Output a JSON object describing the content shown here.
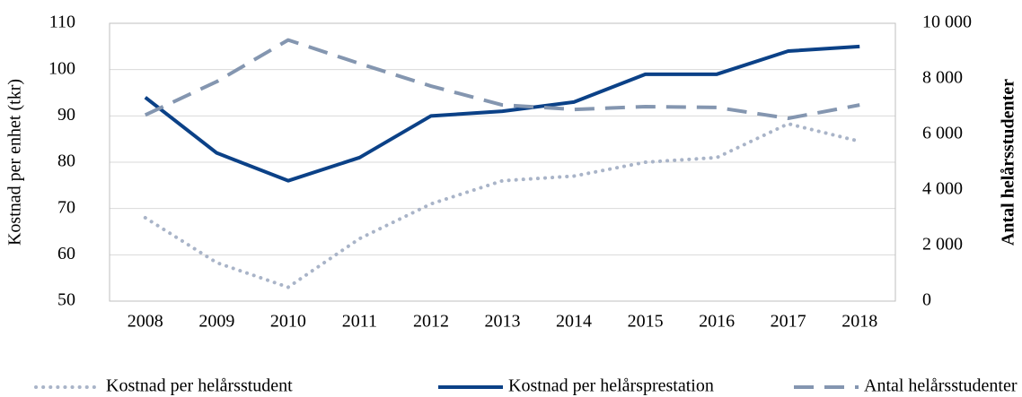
{
  "chart_data": {
    "type": "line",
    "categories": [
      "2008",
      "2009",
      "2010",
      "2011",
      "2012",
      "2013",
      "2014",
      "2015",
      "2016",
      "2017",
      "2018"
    ],
    "ylabel": "Kostnad per enhet (tkr)",
    "y2label": "Antal helårsstudenter",
    "ylim": [
      50,
      110
    ],
    "yticks": [
      50,
      60,
      70,
      80,
      90,
      100,
      110
    ],
    "y2lim": [
      0,
      10000
    ],
    "y2ticks": [
      0,
      {
        "value": 2000,
        "label": "2 000"
      },
      {
        "value": 4000,
        "label": "4 000"
      },
      {
        "value": 6000,
        "label": "6 000"
      },
      {
        "value": 8000,
        "label": "8 000"
      },
      {
        "value": 10000,
        "label": "10 000"
      }
    ],
    "grid": true,
    "legend": "bottom",
    "series": [
      {
        "name": "Kostnad per helårsstudent",
        "color": "#a9b4c8",
        "style": "dotted",
        "values": [
          68,
          58.3,
          53,
          63.5,
          71,
          76,
          77,
          80,
          81,
          88.3,
          84.5
        ]
      },
      {
        "name": "Kostnad per helårsprestation",
        "color": "#0b4187",
        "style": "solid",
        "values": [
          94,
          82,
          76,
          81,
          90,
          91,
          93,
          99,
          99,
          104,
          105
        ]
      },
      {
        "name": "Antal helårsstudenter",
        "color": "#8496b0",
        "style": "dashed",
        "axis": "y2",
        "values": [
          6700,
          7900,
          9400,
          8550,
          7740,
          7060,
          6900,
          7000,
          6970,
          6580,
          7060
        ]
      }
    ]
  }
}
